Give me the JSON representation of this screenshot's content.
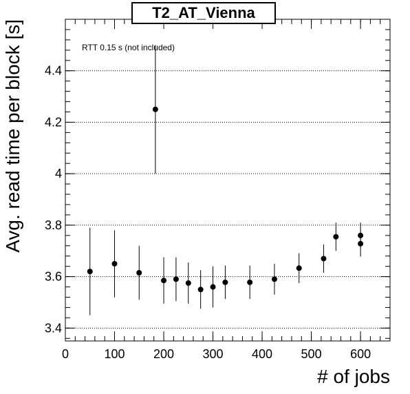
{
  "chart_data": {
    "type": "scatter",
    "title": "T2_AT_Vienna",
    "xlabel": "# of jobs",
    "ylabel": "Avg. read time per block [s]",
    "annotation": "RTT 0.15 s (not included)",
    "xlim": [
      0,
      660
    ],
    "ylim": [
      3.35,
      4.6
    ],
    "x_ticks": [
      0,
      100,
      200,
      300,
      400,
      500,
      600
    ],
    "y_ticks": [
      3.4,
      3.6,
      3.8,
      4,
      4.2,
      4.4
    ],
    "x_tick_labels": [
      "0",
      "100",
      "200",
      "300",
      "400",
      "500",
      "600"
    ],
    "y_tick_labels": [
      "3.4",
      "3.6",
      "3.8",
      "4",
      "4.2",
      "4.4"
    ],
    "grid": "horizontal dotted",
    "legend": "none",
    "marker_color": "#000000",
    "series": [
      {
        "points": [
          {
            "x": 50,
            "y": 3.62,
            "err": 0.17
          },
          {
            "x": 100,
            "y": 3.65,
            "err": 0.13
          },
          {
            "x": 150,
            "y": 3.615,
            "err": 0.105
          },
          {
            "x": 183,
            "y": 4.25,
            "err": 0.25
          },
          {
            "x": 200,
            "y": 3.585,
            "err": 0.09
          },
          {
            "x": 225,
            "y": 3.59,
            "err": 0.085
          },
          {
            "x": 250,
            "y": 3.575,
            "err": 0.08
          },
          {
            "x": 275,
            "y": 3.55,
            "err": 0.075
          },
          {
            "x": 300,
            "y": 3.56,
            "err": 0.08
          },
          {
            "x": 325,
            "y": 3.578,
            "err": 0.065
          },
          {
            "x": 375,
            "y": 3.578,
            "err": 0.065
          },
          {
            "x": 425,
            "y": 3.59,
            "err": 0.06
          },
          {
            "x": 475,
            "y": 3.633,
            "err": 0.058
          },
          {
            "x": 525,
            "y": 3.67,
            "err": 0.055
          },
          {
            "x": 550,
            "y": 3.755,
            "err": 0.055
          },
          {
            "x": 600,
            "y": 3.76,
            "err": 0.05
          },
          {
            "x": 600,
            "y": 3.728,
            "err": 0.05
          }
        ]
      }
    ]
  }
}
